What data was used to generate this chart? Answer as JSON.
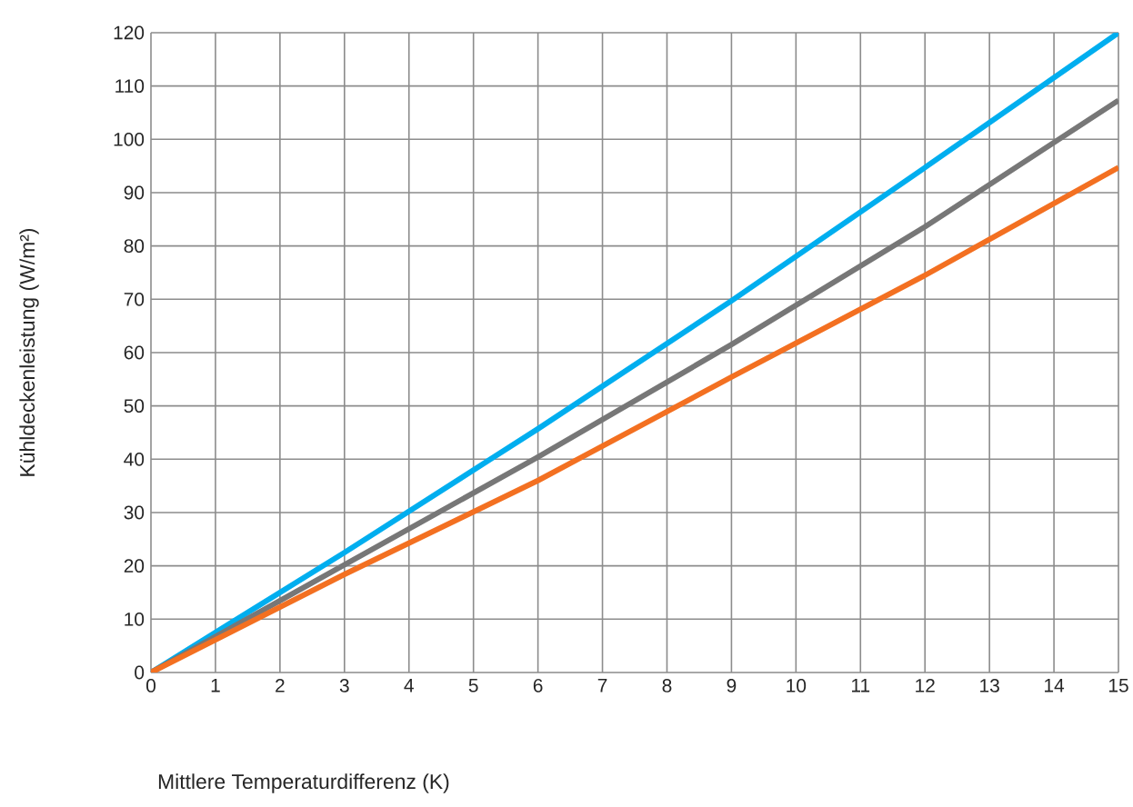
{
  "chart_data": {
    "type": "line",
    "xlabel": "Mittlere Temperaturdifferenz (K)",
    "ylabel": "Kühldeckenleistung (W/m²)",
    "x": [
      0,
      3,
      6,
      9,
      12,
      15
    ],
    "series": [
      {
        "color": "#00aeef",
        "values": [
          0,
          22.5,
          45.7,
          69.7,
          94.7,
          120
        ]
      },
      {
        "color": "#777777",
        "values": [
          0,
          20.2,
          40.4,
          61.5,
          83.6,
          107.3
        ]
      },
      {
        "color": "#f37021",
        "values": [
          0,
          18.4,
          36.0,
          55.4,
          74.5,
          94.7
        ]
      }
    ],
    "xlim": [
      0,
      15
    ],
    "ylim": [
      0,
      120
    ],
    "xticks": [
      0,
      1,
      2,
      3,
      4,
      5,
      6,
      7,
      8,
      9,
      10,
      11,
      12,
      13,
      14,
      15
    ],
    "yticks": [
      0,
      10,
      20,
      30,
      40,
      50,
      60,
      70,
      80,
      90,
      100,
      110,
      120
    ],
    "grid": true,
    "marker": "none",
    "line_style": "solid"
  }
}
